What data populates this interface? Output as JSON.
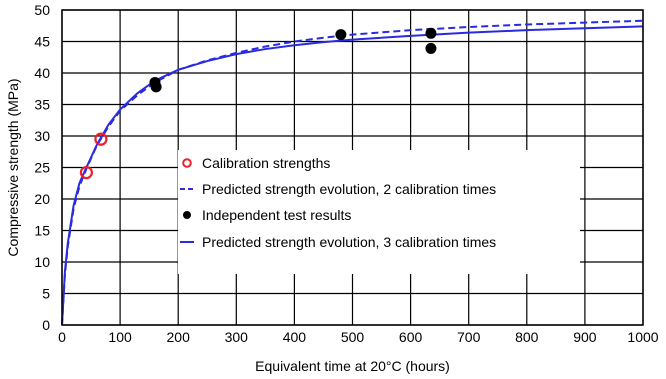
{
  "chart_data": {
    "type": "scatter",
    "title": "",
    "xlabel": "Equivalent time at 20°C (hours)",
    "ylabel": "Compressive strength (MPa)",
    "xlim": [
      0,
      1000
    ],
    "ylim": [
      0,
      50
    ],
    "x_ticks": [
      "0",
      "100",
      "200",
      "300",
      "400",
      "500",
      "600",
      "700",
      "800",
      "900",
      "1000"
    ],
    "y_ticks": [
      "0",
      "5",
      "10",
      "15",
      "20",
      "25",
      "30",
      "35",
      "40",
      "45",
      "50"
    ],
    "grid": true,
    "legend_position": "center-right",
    "series": [
      {
        "name": "Calibration strengths",
        "kind": "points",
        "marker": "open-circle",
        "color": "#e8202a",
        "points": [
          [
            42,
            24.2
          ],
          [
            67,
            29.5
          ]
        ]
      },
      {
        "name": "Predicted strength evolution, 2 calibration times",
        "kind": "line",
        "dash": "dashed",
        "color": "#2a2ae0",
        "points": [
          [
            0,
            0
          ],
          [
            5,
            8
          ],
          [
            10,
            12.5
          ],
          [
            20,
            18.5
          ],
          [
            30,
            22
          ],
          [
            42,
            24.8
          ],
          [
            60,
            28.5
          ],
          [
            80,
            31.5
          ],
          [
            100,
            34
          ],
          [
            130,
            36.5
          ],
          [
            160,
            38.5
          ],
          [
            200,
            40.5
          ],
          [
            250,
            42
          ],
          [
            300,
            43.2
          ],
          [
            350,
            44.2
          ],
          [
            400,
            45
          ],
          [
            450,
            45.6
          ],
          [
            500,
            46.1
          ],
          [
            600,
            46.8
          ],
          [
            700,
            47.3
          ],
          [
            800,
            47.7
          ],
          [
            900,
            48
          ],
          [
            1000,
            48.3
          ]
        ]
      },
      {
        "name": "Independent test results",
        "kind": "points",
        "marker": "filled-circle",
        "color": "#000000",
        "points": [
          [
            160,
            38.5
          ],
          [
            162,
            37.8
          ],
          [
            480,
            46.1
          ],
          [
            635,
            46.3
          ],
          [
            635,
            43.9
          ]
        ]
      },
      {
        "name": "Predicted strength evolution, 3 calibration times",
        "kind": "line",
        "dash": "solid",
        "color": "#2a2ae0",
        "points": [
          [
            0,
            0
          ],
          [
            5,
            8.5
          ],
          [
            10,
            13
          ],
          [
            20,
            19
          ],
          [
            30,
            22.5
          ],
          [
            42,
            25
          ],
          [
            60,
            28.6
          ],
          [
            80,
            31.8
          ],
          [
            100,
            34.2
          ],
          [
            130,
            36.8
          ],
          [
            160,
            38.8
          ],
          [
            200,
            40.5
          ],
          [
            250,
            41.9
          ],
          [
            300,
            43
          ],
          [
            350,
            43.8
          ],
          [
            400,
            44.4
          ],
          [
            450,
            44.9
          ],
          [
            500,
            45.3
          ],
          [
            600,
            45.9
          ],
          [
            700,
            46.4
          ],
          [
            800,
            46.8
          ],
          [
            900,
            47.1
          ],
          [
            1000,
            47.4
          ]
        ]
      }
    ]
  }
}
